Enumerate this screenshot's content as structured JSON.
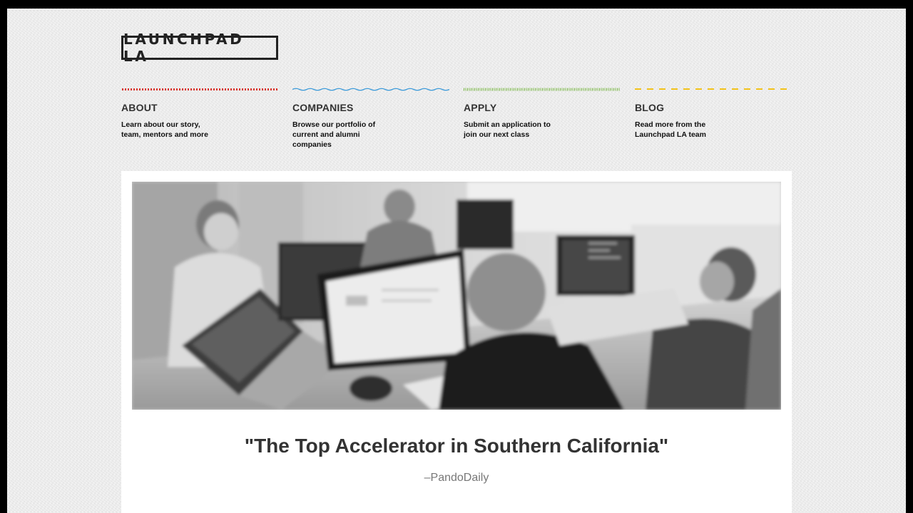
{
  "site": {
    "logo_text": "LAUNCHPAD LA"
  },
  "nav": [
    {
      "key": "about",
      "title": "ABOUT",
      "description": "Learn about our story, team, mentors and more",
      "rule_color": "#d9342b",
      "rule_style": "dotted"
    },
    {
      "key": "companies",
      "title": "COMPANIES",
      "description": "Browse our portfolio of current and alumni companies",
      "rule_color": "#3b9ad9",
      "rule_style": "wavy"
    },
    {
      "key": "apply",
      "title": "APPLY",
      "description": "Submit an application to join our next class",
      "rule_color": "#7bb847",
      "rule_style": "hatched"
    },
    {
      "key": "blog",
      "title": "BLOG",
      "description": "Read more from the Launchpad LA team",
      "rule_color": "#f2c21a",
      "rule_style": "dashed"
    }
  ],
  "hero": {
    "quote": "\"The Top Accelerator in Southern California\"",
    "source": "–PandoDaily",
    "image_subject": "grayscale-office-photo"
  },
  "colors": {
    "background": "#f0f0f0",
    "panel": "#ffffff",
    "text": "#333333"
  }
}
